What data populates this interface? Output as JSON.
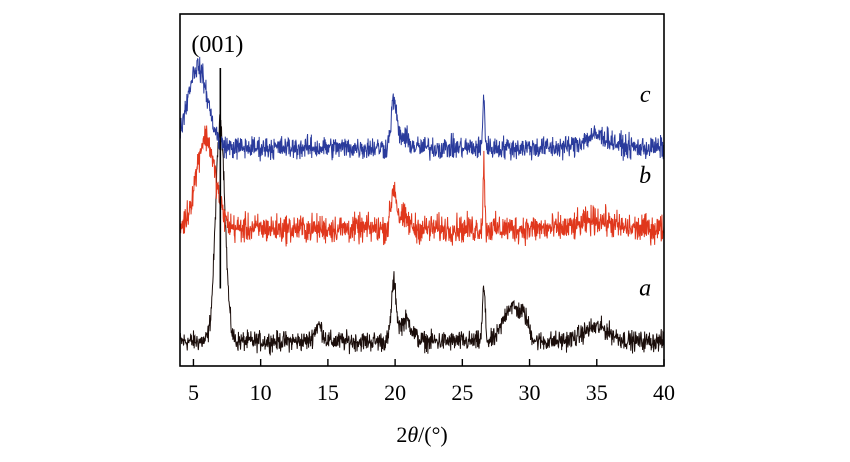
{
  "chart_data": {
    "type": "line",
    "title": "",
    "xlabel_prefix": "2",
    "xlabel_theta": "θ",
    "xlabel_suffix": "/(°)",
    "ylabel": "",
    "xlim": [
      4,
      40
    ],
    "ylim": [
      0,
      10
    ],
    "xticks": [
      5,
      10,
      15,
      20,
      25,
      30,
      35,
      40
    ],
    "xtick_labels": [
      "5",
      "10",
      "15",
      "20",
      "25",
      "30",
      "35",
      "40"
    ],
    "annotation": {
      "text": "(001)",
      "x": 7.0
    },
    "series": [
      {
        "name": "a",
        "color": "#1a0d0a",
        "baseline": 0.7,
        "noise": 0.14,
        "peaks": [
          {
            "x": 7.0,
            "height": 6.2,
            "width": 0.35
          },
          {
            "x": 14.3,
            "height": 0.45,
            "width": 0.3
          },
          {
            "x": 19.9,
            "height": 1.6,
            "width": 0.18
          },
          {
            "x": 20.8,
            "height": 0.6,
            "width": 0.45
          },
          {
            "x": 26.6,
            "height": 1.5,
            "width": 0.1
          },
          {
            "x": 28.6,
            "height": 1.0,
            "width": 0.55
          },
          {
            "x": 29.6,
            "height": 0.6,
            "width": 0.35
          },
          {
            "x": 35.0,
            "height": 0.4,
            "width": 1.0
          }
        ]
      },
      {
        "name": "b",
        "color": "#e0371c",
        "baseline": 3.9,
        "noise": 0.2,
        "peaks": [
          {
            "x": 5.9,
            "height": 2.6,
            "width": 0.7
          },
          {
            "x": 19.9,
            "height": 1.1,
            "width": 0.2
          },
          {
            "x": 20.6,
            "height": 0.3,
            "width": 0.4
          },
          {
            "x": 26.6,
            "height": 1.9,
            "width": 0.06
          },
          {
            "x": 35.0,
            "height": 0.25,
            "width": 1.0
          }
        ]
      },
      {
        "name": "c",
        "color": "#2a3b9c",
        "baseline": 6.2,
        "noise": 0.16,
        "peaks": [
          {
            "x": 5.3,
            "height": 2.3,
            "width": 0.75
          },
          {
            "x": 19.9,
            "height": 1.3,
            "width": 0.2
          },
          {
            "x": 20.6,
            "height": 0.3,
            "width": 0.4
          },
          {
            "x": 26.6,
            "height": 1.5,
            "width": 0.07
          },
          {
            "x": 35.0,
            "height": 0.35,
            "width": 1.0
          }
        ]
      }
    ]
  }
}
